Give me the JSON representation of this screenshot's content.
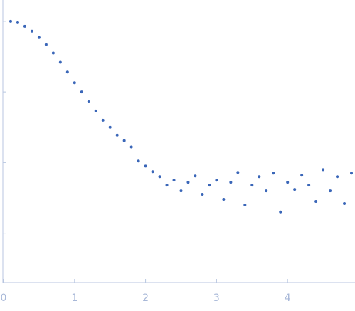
{
  "chart_data": {
    "type": "scatter",
    "log_y": true,
    "color": "#3a66b8",
    "x": [
      0.1,
      0.2,
      0.3,
      0.4,
      0.5,
      0.6,
      0.7,
      0.8,
      0.9,
      1.0,
      1.1,
      1.2,
      1.3,
      1.4,
      1.5,
      1.6,
      1.7,
      1.8,
      1.9,
      2.0,
      2.1,
      2.2,
      2.3,
      2.4,
      2.5,
      2.6,
      2.7,
      2.8,
      2.9,
      3.0,
      3.1,
      3.2,
      3.3,
      3.4,
      3.5,
      3.6,
      3.7,
      3.8,
      3.9,
      4.0,
      4.1,
      4.2,
      4.3,
      4.4,
      4.5,
      4.6,
      4.7,
      4.8,
      4.9
    ],
    "values": [
      1.0,
      0.955,
      0.851,
      0.724,
      0.589,
      0.468,
      0.355,
      0.263,
      0.191,
      0.135,
      0.1,
      0.0724,
      0.0537,
      0.0398,
      0.0316,
      0.0245,
      0.0204,
      0.0166,
      0.0105,
      0.00891,
      0.00741,
      0.00631,
      0.00479,
      0.00562,
      0.00398,
      0.00525,
      0.00646,
      0.00355,
      0.00479,
      0.00562,
      0.00302,
      0.00525,
      0.00724,
      0.00251,
      0.00479,
      0.00631,
      0.00398,
      0.00708,
      0.002,
      0.00525,
      0.00417,
      0.00661,
      0.00479,
      0.00282,
      0.00794,
      0.00398,
      0.00631,
      0.00263,
      0.00708
    ],
    "xlim": [
      -0.01,
      4.95
    ],
    "xticks": [
      0,
      1,
      2,
      3,
      4
    ],
    "ylim": [
      0.0002,
      2
    ],
    "yticks": [
      0.001,
      0.01,
      0.1,
      1
    ]
  }
}
